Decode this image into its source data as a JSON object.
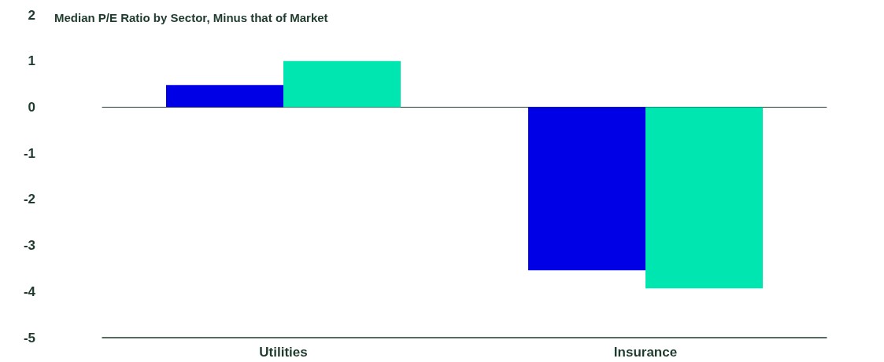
{
  "chart_data": {
    "type": "bar",
    "title": "Median P/E Ratio by Sector, Minus that of Market",
    "categories": [
      "Utilities",
      "Insurance"
    ],
    "series": [
      {
        "color": "#0000e6",
        "values": [
          0.48,
          -3.54
        ]
      },
      {
        "color": "#00e6b0",
        "values": [
          1.0,
          -3.93
        ]
      }
    ],
    "ylim": [
      -5,
      2
    ],
    "yticks": [
      -5,
      -4,
      -3,
      -2,
      -1,
      0,
      1,
      2
    ]
  }
}
